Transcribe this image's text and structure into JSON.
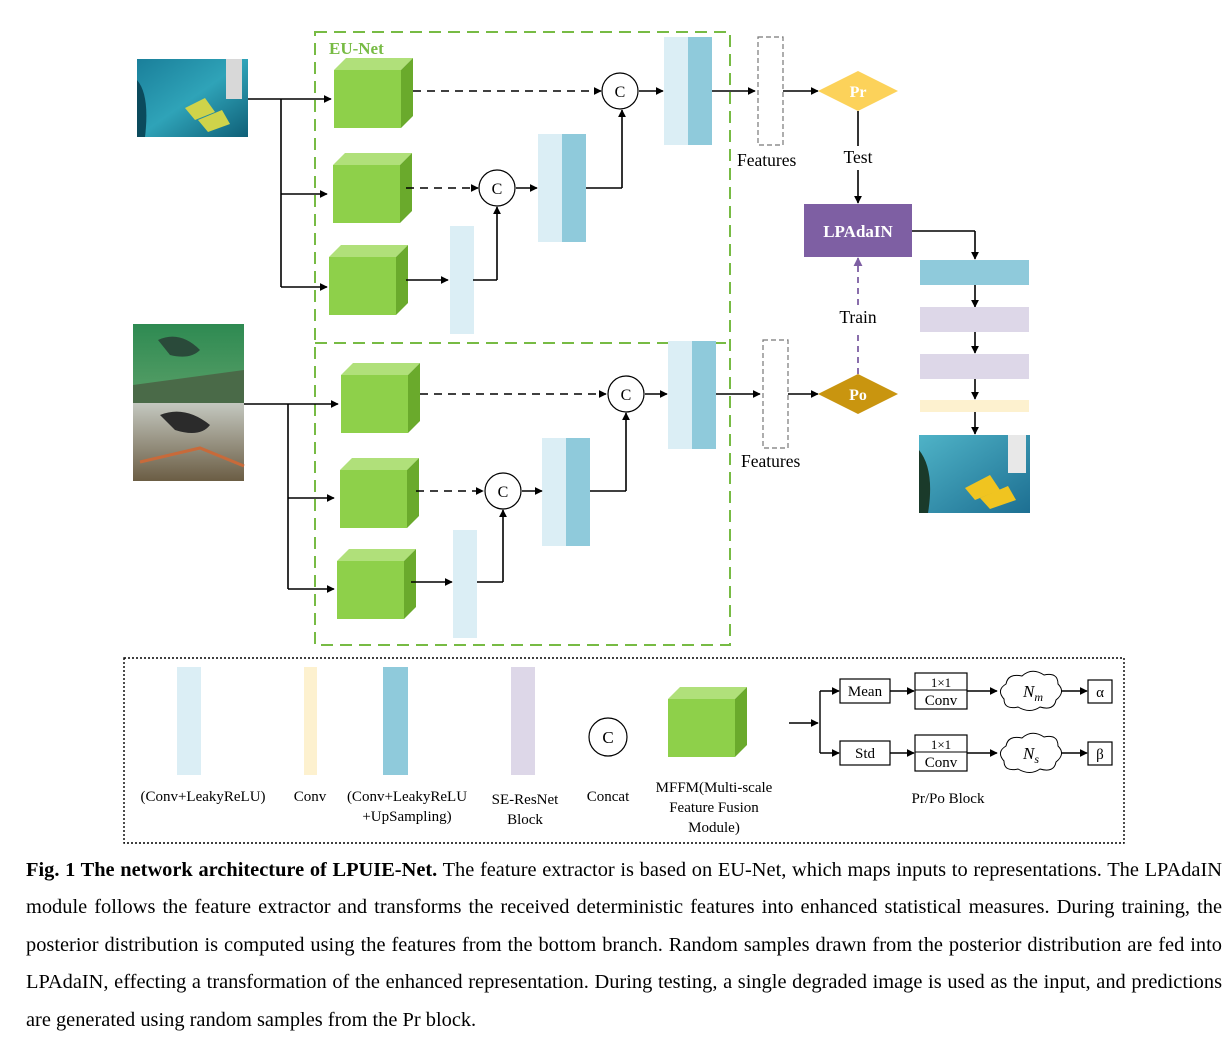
{
  "diagram": {
    "eunet_label": "EU-Net",
    "concat_symbol": "C",
    "features_top": "Features",
    "features_bottom": "Features",
    "pr_label": "Pr",
    "po_label": "Po",
    "test_label": "Test",
    "train_label": "Train",
    "lpadain_label": "LPAdaIN",
    "colors": {
      "cube_front": "#8ed04a",
      "cube_top": "#b0e07a",
      "cube_side": "#6aaa2c",
      "light_bar": "#dbeef5",
      "dark_bar": "#8fcadb",
      "conv_bar": "#fdf1cf",
      "se_bar": "#ddd7e8",
      "pr_fill": "#fcd25a",
      "po_fill": "#c9950f",
      "lpadain_fill": "#7e5fa3",
      "train_arrow": "#7e5fa3",
      "dash_green": "#77bb44"
    }
  },
  "legend": {
    "items": [
      {
        "name": "conv-leakyrelu",
        "lines": [
          "(Conv+LeakyReLU)"
        ]
      },
      {
        "name": "conv",
        "lines": [
          "Conv"
        ]
      },
      {
        "name": "conv-leakyrelu-upsampling",
        "lines": [
          "(Conv+LeakyReLU",
          "+UpSampling)"
        ]
      },
      {
        "name": "se-resnet-block",
        "lines": [
          "SE-ResNet",
          "Block"
        ]
      },
      {
        "name": "concat",
        "lines": [
          "Concat"
        ]
      },
      {
        "name": "mffm",
        "lines": [
          "MFFM(Multi-scale",
          "Feature Fusion",
          "Module)"
        ]
      }
    ],
    "block": {
      "mean": "Mean",
      "std": "Std",
      "conv_top": "1×1",
      "conv_bottom": "Conv",
      "nm_base": "N",
      "nm_sub": "m",
      "ns_base": "N",
      "ns_sub": "s",
      "alpha": "α",
      "beta": "β",
      "title": "Pr/Po Block"
    }
  },
  "caption": {
    "bold": "Fig. 1 The network architecture of LPUIE-Net.",
    "text": " The feature extractor is based on EU-Net, which maps inputs to representations. The LPAdaIN module follows the feature extractor and transforms the received deterministic features into enhanced statistical measures. During training, the posterior distribution is computed using the features from the bottom branch. Random samples drawn from the posterior distribution are fed into LPAdaIN, effecting a transformation of the enhanced representation. During testing, a single degraded image is used as the input, and predictions are generated using random samples from the Pr block."
  }
}
